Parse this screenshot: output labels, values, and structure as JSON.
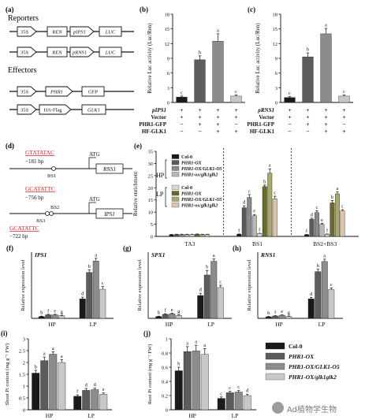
{
  "panels": {
    "a": {
      "letter": "(a)",
      "reporters_title": "Reporters",
      "effectors_title": "Effectors",
      "reporter1": {
        "promoter": "35S",
        "gene": "REN",
        "promoter2": "pIPS1",
        "reporter": "LUC"
      },
      "reporter2": {
        "promoter": "35S",
        "gene": "REN",
        "promoter2": "pRNS1",
        "reporter": "LUC"
      },
      "effector1": {
        "promoter": "35S",
        "gene": "PHR1",
        "tag": "GFP"
      },
      "effector2": {
        "promoter": "35S",
        "tag": "HA-Flag",
        "gene": "GLK1"
      }
    },
    "d": {
      "letter": "(d)",
      "rns1": {
        "motif": "GTATATAC",
        "distance": "−181 bp",
        "bs": "BS1",
        "atg": "ATG",
        "gene": "RNS1"
      },
      "ips1": {
        "motif1": "GCATATTC",
        "distance1": "−756 bp",
        "bs2": "BS2",
        "bs3": "BS3",
        "motif2": "GCATATTC",
        "distance2": "−722 bp",
        "atg": "ATG",
        "gene": "IPS1"
      }
    },
    "e_labels": {
      "hp": "HP",
      "lp": "LP"
    }
  },
  "luc_legend": {
    "rows": [
      "Vector",
      "PHR1-GFP",
      "HF-GLK1"
    ],
    "b_header": "pIPS1",
    "c_header": "pRNS1",
    "matrix": [
      [
        "+",
        "+",
        "+",
        "+"
      ],
      [
        "−",
        "+",
        "+",
        "−"
      ],
      [
        "−",
        "−",
        "+",
        "+"
      ]
    ]
  },
  "legend": {
    "e_items": [
      "Col-0",
      "PHR1-OX",
      "PHR1-OX/GLK1-O5",
      "PHR1-ox/glk1glk2"
    ],
    "main_items": [
      "Col-0",
      "PHR1-OX",
      "PHR1-OX/GLK1-O5",
      "PHR1-OX/glk1glk2"
    ]
  },
  "colors": {
    "b_bars": [
      "#1a1a1a",
      "#5c5c5c",
      "#8c8c8c",
      "#c8c8c8"
    ],
    "e_hp": [
      "#1a1a1a",
      "#5a5a5a",
      "#8a8a8a",
      "#b8b8b8"
    ],
    "e_lp": [
      "#d8d8d8",
      "#6b6a2a",
      "#a9a96c",
      "#dbc4ae"
    ],
    "fgh": [
      "#1a1a1a",
      "#5c5c5c",
      "#8c8c8c",
      "#c8c8c8"
    ],
    "ij": [
      "#1a1a1a",
      "#5c5c5c",
      "#8c8c8c",
      "#c8c8c8"
    ]
  },
  "watermark": "Ad植物学生物",
  "chart_data": [
    {
      "id": "b",
      "letter": "(b)",
      "type": "bar",
      "ylabel": "Relative Luc activity (Luc/Ren)",
      "ylim": [
        0,
        18
      ],
      "yticks": [
        0,
        3,
        6,
        9,
        12,
        15,
        18
      ],
      "categories": [
        "1",
        "2",
        "3",
        "4"
      ],
      "values": [
        1.1,
        8.7,
        12.5,
        1.3
      ],
      "errors": [
        0.2,
        0.8,
        1.5,
        0.2
      ],
      "letters": [
        "c",
        "b",
        "a",
        "c"
      ]
    },
    {
      "id": "c",
      "letter": "(c)",
      "type": "bar",
      "ylabel": "Relative Luc activity (Luc/Ren)",
      "ylim": [
        0,
        18
      ],
      "yticks": [
        0,
        3,
        6,
        9,
        12,
        15,
        18
      ],
      "categories": [
        "1",
        "2",
        "3",
        "4"
      ],
      "values": [
        1.0,
        9.3,
        14.0,
        1.3
      ],
      "errors": [
        0.2,
        0.8,
        1.1,
        0.2
      ],
      "letters": [
        "c",
        "b",
        "a",
        "c"
      ]
    },
    {
      "id": "e",
      "letter": "(e)",
      "type": "bar",
      "ylabel": "Relative enrichment",
      "ylim": [
        0,
        35
      ],
      "yticks": [
        0,
        5,
        10,
        15,
        20,
        25,
        30,
        35
      ],
      "categories": [
        "TA3",
        "BS1",
        "BS2+BS3"
      ],
      "series": [
        {
          "name": "Col-0 HP",
          "values": [
            0.7,
            0.9,
            0.7
          ],
          "errors": [
            0.1,
            0.1,
            0.1
          ],
          "letters": [
            "",
            "f",
            "f"
          ]
        },
        {
          "name": "PHR1-OX HP",
          "values": [
            0.8,
            11.8,
            7.0
          ],
          "errors": [
            0.1,
            0.8,
            0.5
          ],
          "letters": [
            "",
            "d",
            "d"
          ]
        },
        {
          "name": "PHR1-OX/GLK1-O5 HP",
          "values": [
            0.8,
            16.0,
            9.8
          ],
          "errors": [
            0.1,
            1.2,
            0.8
          ],
          "letters": [
            "",
            "c",
            "c"
          ]
        },
        {
          "name": "PHR1-ox/glk1glk2 HP",
          "values": [
            0.8,
            8.5,
            5.0
          ],
          "errors": [
            0.1,
            0.5,
            0.4
          ],
          "letters": [
            "",
            "e",
            "e"
          ]
        },
        {
          "name": "Col-0 LP",
          "values": [
            0.8,
            1.2,
            0.9
          ],
          "errors": [
            0.1,
            0.1,
            0.1
          ],
          "letters": [
            "",
            "f",
            "f"
          ]
        },
        {
          "name": "PHR1-OX LP",
          "values": [
            0.9,
            20.5,
            13.8
          ],
          "errors": [
            0.1,
            0.6,
            1.0
          ],
          "letters": [
            "",
            "b",
            "b"
          ]
        },
        {
          "name": "PHR1-OX/GLK1-O5 LP",
          "values": [
            0.8,
            26.0,
            17.5
          ],
          "errors": [
            0.1,
            1.8,
            0.8
          ],
          "letters": [
            "",
            "a",
            "a"
          ]
        },
        {
          "name": "PHR1-ox/glk1glk2 LP",
          "values": [
            0.8,
            15.5,
            10.5
          ],
          "errors": [
            0.1,
            1.0,
            0.5
          ],
          "letters": [
            "",
            "c",
            "c"
          ]
        }
      ]
    },
    {
      "id": "f",
      "letter": "(f)",
      "type": "bar",
      "gene": "IPS1",
      "ylabel": "Relative expression level",
      "categories": [
        "HP",
        "LP"
      ],
      "values": [
        [
          2,
          4,
          4,
          3
        ],
        [
          22,
          52,
          65,
          33
        ]
      ],
      "errors": [
        [
          0.5,
          0.6,
          0.6,
          0.5
        ],
        [
          2,
          3,
          3,
          3
        ]
      ],
      "letters": [
        [
          "h",
          "f",
          "e",
          "g"
        ],
        [
          "d",
          "b",
          "a",
          "c"
        ]
      ],
      "ymax": 75
    },
    {
      "id": "g",
      "letter": "(g)",
      "type": "bar",
      "gene": "SPX1",
      "ylabel": "Relative expression level",
      "categories": [
        "HP",
        "LP"
      ],
      "values": [
        [
          1.5,
          3.5,
          4,
          2.5
        ],
        [
          20,
          38,
          50,
          27
        ]
      ],
      "errors": [
        [
          0.4,
          0.5,
          0.5,
          0.5
        ],
        [
          2,
          4,
          2,
          2
        ]
      ],
      "letters": [
        [
          "h",
          "f",
          "e",
          "g"
        ],
        [
          "d",
          "b",
          "a",
          "c"
        ]
      ],
      "ymax": 58
    },
    {
      "id": "h",
      "letter": "(h)",
      "type": "bar",
      "gene": "RNS1",
      "ylabel": "Relative expression level",
      "categories": [
        "HP",
        "LP"
      ],
      "values": [
        [
          2,
          3,
          4,
          2.5
        ],
        [
          25,
          60,
          73,
          37
        ]
      ],
      "errors": [
        [
          0.4,
          0.5,
          0.5,
          0.5
        ],
        [
          2,
          3,
          3,
          2
        ]
      ],
      "letters": [
        [
          "h",
          "f",
          "e",
          "g"
        ],
        [
          "d",
          "b",
          "a",
          "c"
        ]
      ],
      "ymax": 85
    },
    {
      "id": "i",
      "letter": "(i)",
      "type": "bar",
      "ylabel": "Shoot Pi content (mg g⁻¹ FW)",
      "categories": [
        "HP",
        "LP"
      ],
      "ylim": [
        0,
        3.0
      ],
      "yticks": [
        0,
        0.5,
        1.0,
        1.5,
        2.0,
        2.5,
        3.0
      ],
      "values": [
        [
          1.55,
          2.08,
          2.35,
          2.0
        ],
        [
          0.57,
          0.82,
          0.85,
          0.65
        ]
      ],
      "errors": [
        [
          0.12,
          0.15,
          0.1,
          0.12
        ],
        [
          0.06,
          0.08,
          0.06,
          0.06
        ]
      ],
      "letters": [
        [
          "b",
          "a",
          "a",
          "a"
        ],
        [
          "f",
          "d",
          "d",
          "e"
        ]
      ]
    },
    {
      "id": "j",
      "letter": "(j)",
      "type": "bar",
      "ylabel": "Root Pi content (mg g⁻¹ FW)",
      "categories": [
        "HP",
        "LP"
      ],
      "ylim": [
        0,
        1.0
      ],
      "yticks": [
        0,
        0.2,
        0.4,
        0.6,
        0.8,
        1.0
      ],
      "values": [
        [
          0.55,
          0.82,
          0.83,
          0.78
        ],
        [
          0.16,
          0.24,
          0.25,
          0.2
        ]
      ],
      "errors": [
        [
          0.05,
          0.07,
          0.08,
          0.08
        ],
        [
          0.02,
          0.02,
          0.02,
          0.02
        ]
      ],
      "letters": [
        [
          "b",
          "a",
          "a",
          "a"
        ],
        [
          "c",
          "c",
          "c",
          "d"
        ]
      ]
    }
  ]
}
